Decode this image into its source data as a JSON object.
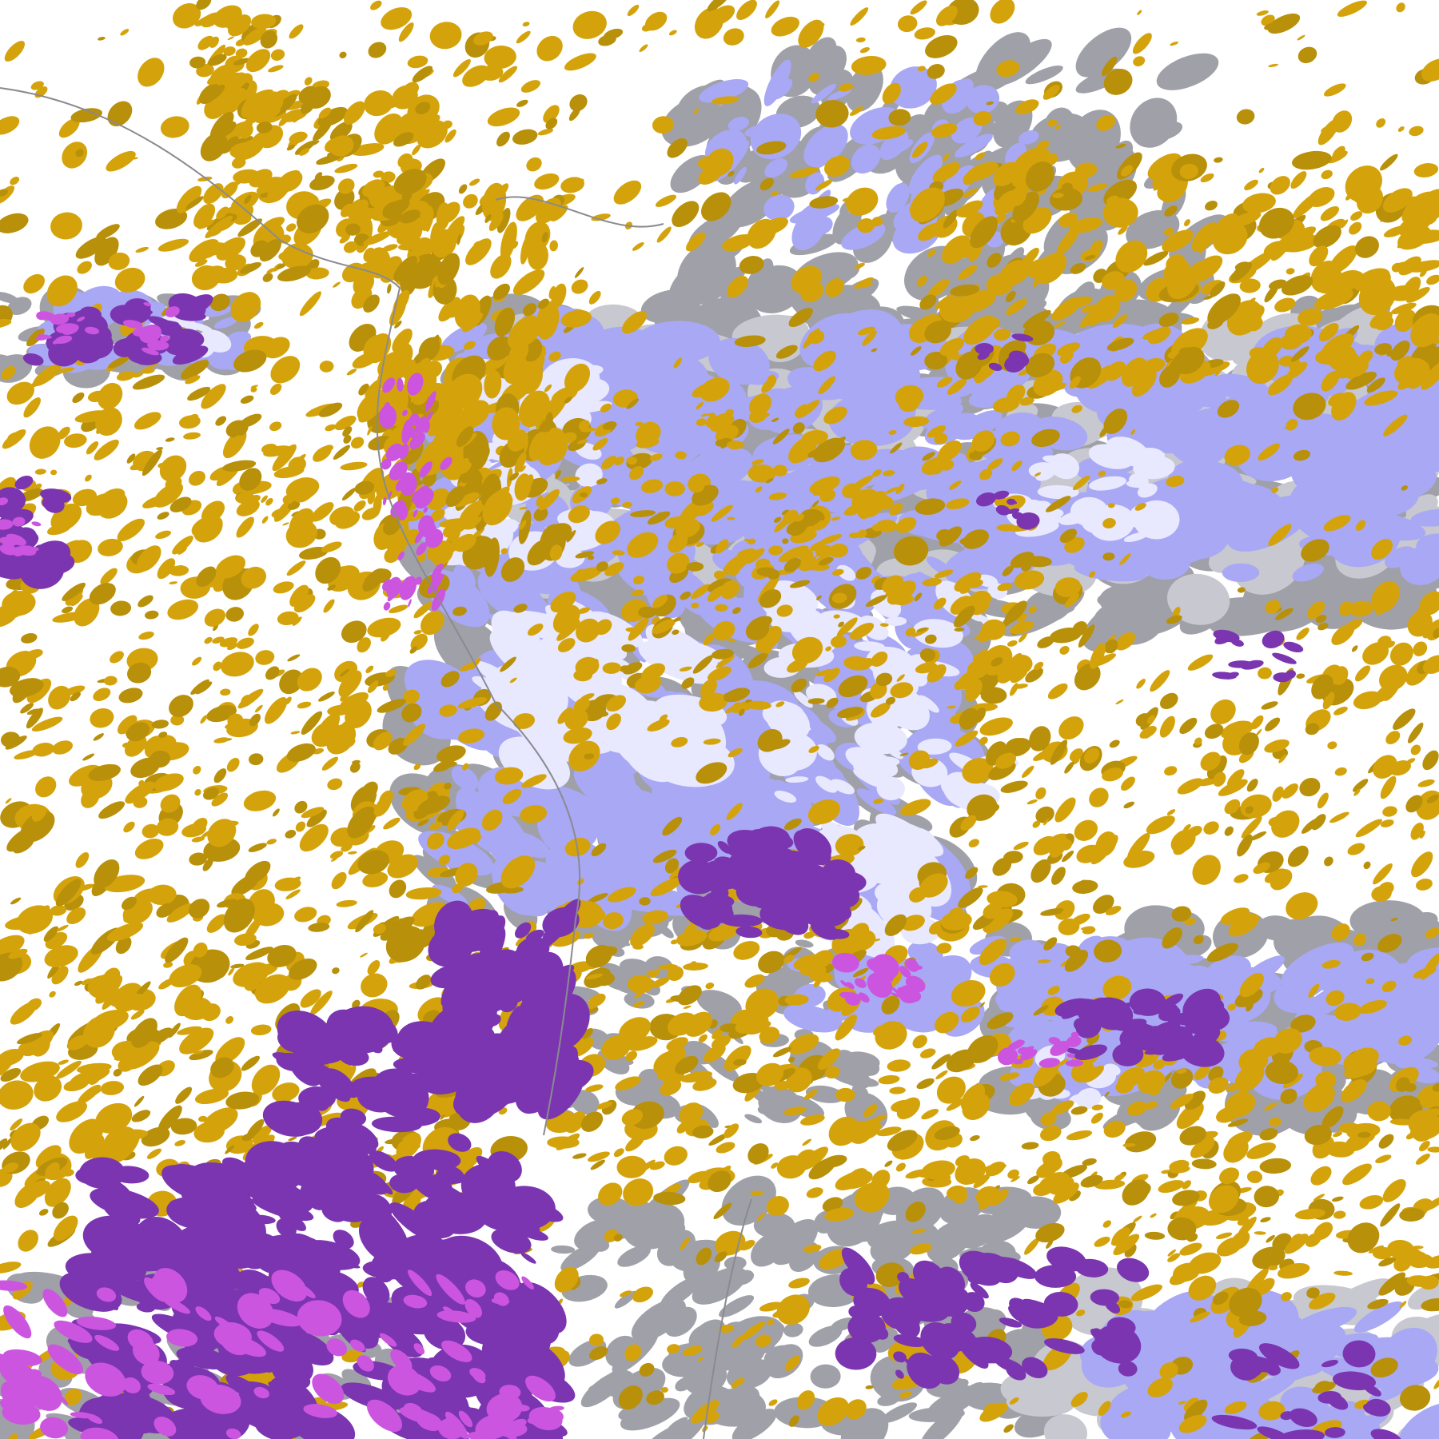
{
  "map": {
    "type": "classified raster",
    "background_color": "#ffffff",
    "palette": {
      "gold": "#d4a30c",
      "dark_gold": "#b8900a",
      "purple": "#7b35b0",
      "magenta": "#cc55e0",
      "lavender": "#a8a8f4",
      "pale_lavender": "#e8e8ff",
      "gray": "#a0a0a8",
      "light_gray": "#c8c8d0",
      "river": "#8a8a90"
    }
  }
}
